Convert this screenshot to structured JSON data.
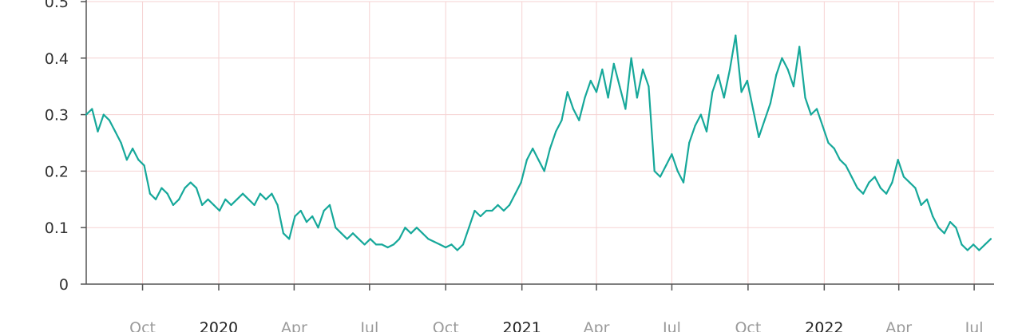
{
  "chart_data": {
    "type": "line",
    "title": "",
    "xlabel": "",
    "ylabel": "",
    "ylim": [
      0,
      0.5
    ],
    "xlim": [
      "2019-07-25",
      "2022-07-25"
    ],
    "grid": true,
    "y_ticks": [
      "0",
      "0.1",
      "0.2",
      "0.3",
      "0.4",
      "0.5"
    ],
    "x_ticks": [
      {
        "date": "2019-10-01",
        "label": "Oct",
        "major": false
      },
      {
        "date": "2020-01-01",
        "label": "2020",
        "major": true
      },
      {
        "date": "2020-04-01",
        "label": "Apr",
        "major": false
      },
      {
        "date": "2020-07-01",
        "label": "Jul",
        "major": false
      },
      {
        "date": "2020-10-01",
        "label": "Oct",
        "major": false
      },
      {
        "date": "2021-01-01",
        "label": "2021",
        "major": true
      },
      {
        "date": "2021-04-01",
        "label": "Apr",
        "major": false
      },
      {
        "date": "2021-07-01",
        "label": "Jul",
        "major": false
      },
      {
        "date": "2021-10-01",
        "label": "Oct",
        "major": false
      },
      {
        "date": "2022-01-01",
        "label": "2022",
        "major": true
      },
      {
        "date": "2022-04-01",
        "label": "Apr",
        "major": false
      },
      {
        "date": "2022-07-01",
        "label": "Jul",
        "major": false
      }
    ],
    "series": [
      {
        "color": "#16a89a",
        "points": [
          [
            "2019-07-25",
            0.3
          ],
          [
            "2019-08-01",
            0.31
          ],
          [
            "2019-08-08",
            0.27
          ],
          [
            "2019-08-15",
            0.3
          ],
          [
            "2019-08-22",
            0.29
          ],
          [
            "2019-08-29",
            0.27
          ],
          [
            "2019-09-05",
            0.25
          ],
          [
            "2019-09-12",
            0.22
          ],
          [
            "2019-09-19",
            0.24
          ],
          [
            "2019-09-26",
            0.22
          ],
          [
            "2019-10-03",
            0.21
          ],
          [
            "2019-10-10",
            0.16
          ],
          [
            "2019-10-17",
            0.15
          ],
          [
            "2019-10-24",
            0.17
          ],
          [
            "2019-10-31",
            0.16
          ],
          [
            "2019-11-07",
            0.14
          ],
          [
            "2019-11-14",
            0.15
          ],
          [
            "2019-11-21",
            0.17
          ],
          [
            "2019-11-28",
            0.18
          ],
          [
            "2019-12-05",
            0.17
          ],
          [
            "2019-12-12",
            0.14
          ],
          [
            "2019-12-19",
            0.15
          ],
          [
            "2019-12-26",
            0.14
          ],
          [
            "2020-01-02",
            0.13
          ],
          [
            "2020-01-09",
            0.15
          ],
          [
            "2020-01-16",
            0.14
          ],
          [
            "2020-01-23",
            0.15
          ],
          [
            "2020-01-30",
            0.16
          ],
          [
            "2020-02-06",
            0.15
          ],
          [
            "2020-02-13",
            0.14
          ],
          [
            "2020-02-20",
            0.16
          ],
          [
            "2020-02-27",
            0.15
          ],
          [
            "2020-03-05",
            0.16
          ],
          [
            "2020-03-12",
            0.14
          ],
          [
            "2020-03-19",
            0.09
          ],
          [
            "2020-03-26",
            0.08
          ],
          [
            "2020-04-02",
            0.12
          ],
          [
            "2020-04-09",
            0.13
          ],
          [
            "2020-04-16",
            0.11
          ],
          [
            "2020-04-23",
            0.12
          ],
          [
            "2020-04-30",
            0.1
          ],
          [
            "2020-05-07",
            0.13
          ],
          [
            "2020-05-14",
            0.14
          ],
          [
            "2020-05-21",
            0.1
          ],
          [
            "2020-05-28",
            0.09
          ],
          [
            "2020-06-04",
            0.08
          ],
          [
            "2020-06-11",
            0.09
          ],
          [
            "2020-06-18",
            0.08
          ],
          [
            "2020-06-25",
            0.07
          ],
          [
            "2020-07-02",
            0.08
          ],
          [
            "2020-07-09",
            0.07
          ],
          [
            "2020-07-16",
            0.07
          ],
          [
            "2020-07-23",
            0.065
          ],
          [
            "2020-07-30",
            0.07
          ],
          [
            "2020-08-06",
            0.08
          ],
          [
            "2020-08-13",
            0.1
          ],
          [
            "2020-08-20",
            0.09
          ],
          [
            "2020-08-27",
            0.1
          ],
          [
            "2020-09-03",
            0.09
          ],
          [
            "2020-09-10",
            0.08
          ],
          [
            "2020-09-17",
            0.075
          ],
          [
            "2020-09-24",
            0.07
          ],
          [
            "2020-10-01",
            0.065
          ],
          [
            "2020-10-08",
            0.07
          ],
          [
            "2020-10-15",
            0.06
          ],
          [
            "2020-10-22",
            0.07
          ],
          [
            "2020-10-29",
            0.1
          ],
          [
            "2020-11-05",
            0.13
          ],
          [
            "2020-11-12",
            0.12
          ],
          [
            "2020-11-19",
            0.13
          ],
          [
            "2020-11-26",
            0.13
          ],
          [
            "2020-12-03",
            0.14
          ],
          [
            "2020-12-10",
            0.13
          ],
          [
            "2020-12-17",
            0.14
          ],
          [
            "2020-12-24",
            0.16
          ],
          [
            "2020-12-31",
            0.18
          ],
          [
            "2021-01-07",
            0.22
          ],
          [
            "2021-01-14",
            0.24
          ],
          [
            "2021-01-21",
            0.22
          ],
          [
            "2021-01-28",
            0.2
          ],
          [
            "2021-02-04",
            0.24
          ],
          [
            "2021-02-11",
            0.27
          ],
          [
            "2021-02-18",
            0.29
          ],
          [
            "2021-02-25",
            0.34
          ],
          [
            "2021-03-04",
            0.31
          ],
          [
            "2021-03-11",
            0.29
          ],
          [
            "2021-03-18",
            0.33
          ],
          [
            "2021-03-25",
            0.36
          ],
          [
            "2021-04-01",
            0.34
          ],
          [
            "2021-04-08",
            0.38
          ],
          [
            "2021-04-15",
            0.33
          ],
          [
            "2021-04-22",
            0.39
          ],
          [
            "2021-04-29",
            0.35
          ],
          [
            "2021-05-06",
            0.31
          ],
          [
            "2021-05-13",
            0.4
          ],
          [
            "2021-05-20",
            0.33
          ],
          [
            "2021-05-27",
            0.38
          ],
          [
            "2021-06-03",
            0.35
          ],
          [
            "2021-06-10",
            0.2
          ],
          [
            "2021-06-17",
            0.19
          ],
          [
            "2021-06-24",
            0.21
          ],
          [
            "2021-07-01",
            0.23
          ],
          [
            "2021-07-08",
            0.2
          ],
          [
            "2021-07-15",
            0.18
          ],
          [
            "2021-07-22",
            0.25
          ],
          [
            "2021-07-29",
            0.28
          ],
          [
            "2021-08-05",
            0.3
          ],
          [
            "2021-08-12",
            0.27
          ],
          [
            "2021-08-19",
            0.34
          ],
          [
            "2021-08-26",
            0.37
          ],
          [
            "2021-09-02",
            0.33
          ],
          [
            "2021-09-09",
            0.38
          ],
          [
            "2021-09-16",
            0.44
          ],
          [
            "2021-09-23",
            0.34
          ],
          [
            "2021-09-30",
            0.36
          ],
          [
            "2021-10-07",
            0.31
          ],
          [
            "2021-10-14",
            0.26
          ],
          [
            "2021-10-21",
            0.29
          ],
          [
            "2021-10-28",
            0.32
          ],
          [
            "2021-11-04",
            0.37
          ],
          [
            "2021-11-11",
            0.4
          ],
          [
            "2021-11-18",
            0.38
          ],
          [
            "2021-11-25",
            0.35
          ],
          [
            "2021-12-02",
            0.42
          ],
          [
            "2021-12-09",
            0.33
          ],
          [
            "2021-12-16",
            0.3
          ],
          [
            "2021-12-23",
            0.31
          ],
          [
            "2021-12-30",
            0.28
          ],
          [
            "2022-01-06",
            0.25
          ],
          [
            "2022-01-13",
            0.24
          ],
          [
            "2022-01-20",
            0.22
          ],
          [
            "2022-01-27",
            0.21
          ],
          [
            "2022-02-03",
            0.19
          ],
          [
            "2022-02-10",
            0.17
          ],
          [
            "2022-02-17",
            0.16
          ],
          [
            "2022-02-24",
            0.18
          ],
          [
            "2022-03-03",
            0.19
          ],
          [
            "2022-03-10",
            0.17
          ],
          [
            "2022-03-17",
            0.16
          ],
          [
            "2022-03-24",
            0.18
          ],
          [
            "2022-03-31",
            0.22
          ],
          [
            "2022-04-07",
            0.19
          ],
          [
            "2022-04-14",
            0.18
          ],
          [
            "2022-04-21",
            0.17
          ],
          [
            "2022-04-28",
            0.14
          ],
          [
            "2022-05-05",
            0.15
          ],
          [
            "2022-05-12",
            0.12
          ],
          [
            "2022-05-19",
            0.1
          ],
          [
            "2022-05-26",
            0.09
          ],
          [
            "2022-06-02",
            0.11
          ],
          [
            "2022-06-09",
            0.1
          ],
          [
            "2022-06-16",
            0.07
          ],
          [
            "2022-06-23",
            0.06
          ],
          [
            "2022-06-30",
            0.07
          ],
          [
            "2022-07-07",
            0.06
          ],
          [
            "2022-07-14",
            0.07
          ],
          [
            "2022-07-21",
            0.08
          ]
        ]
      }
    ]
  }
}
